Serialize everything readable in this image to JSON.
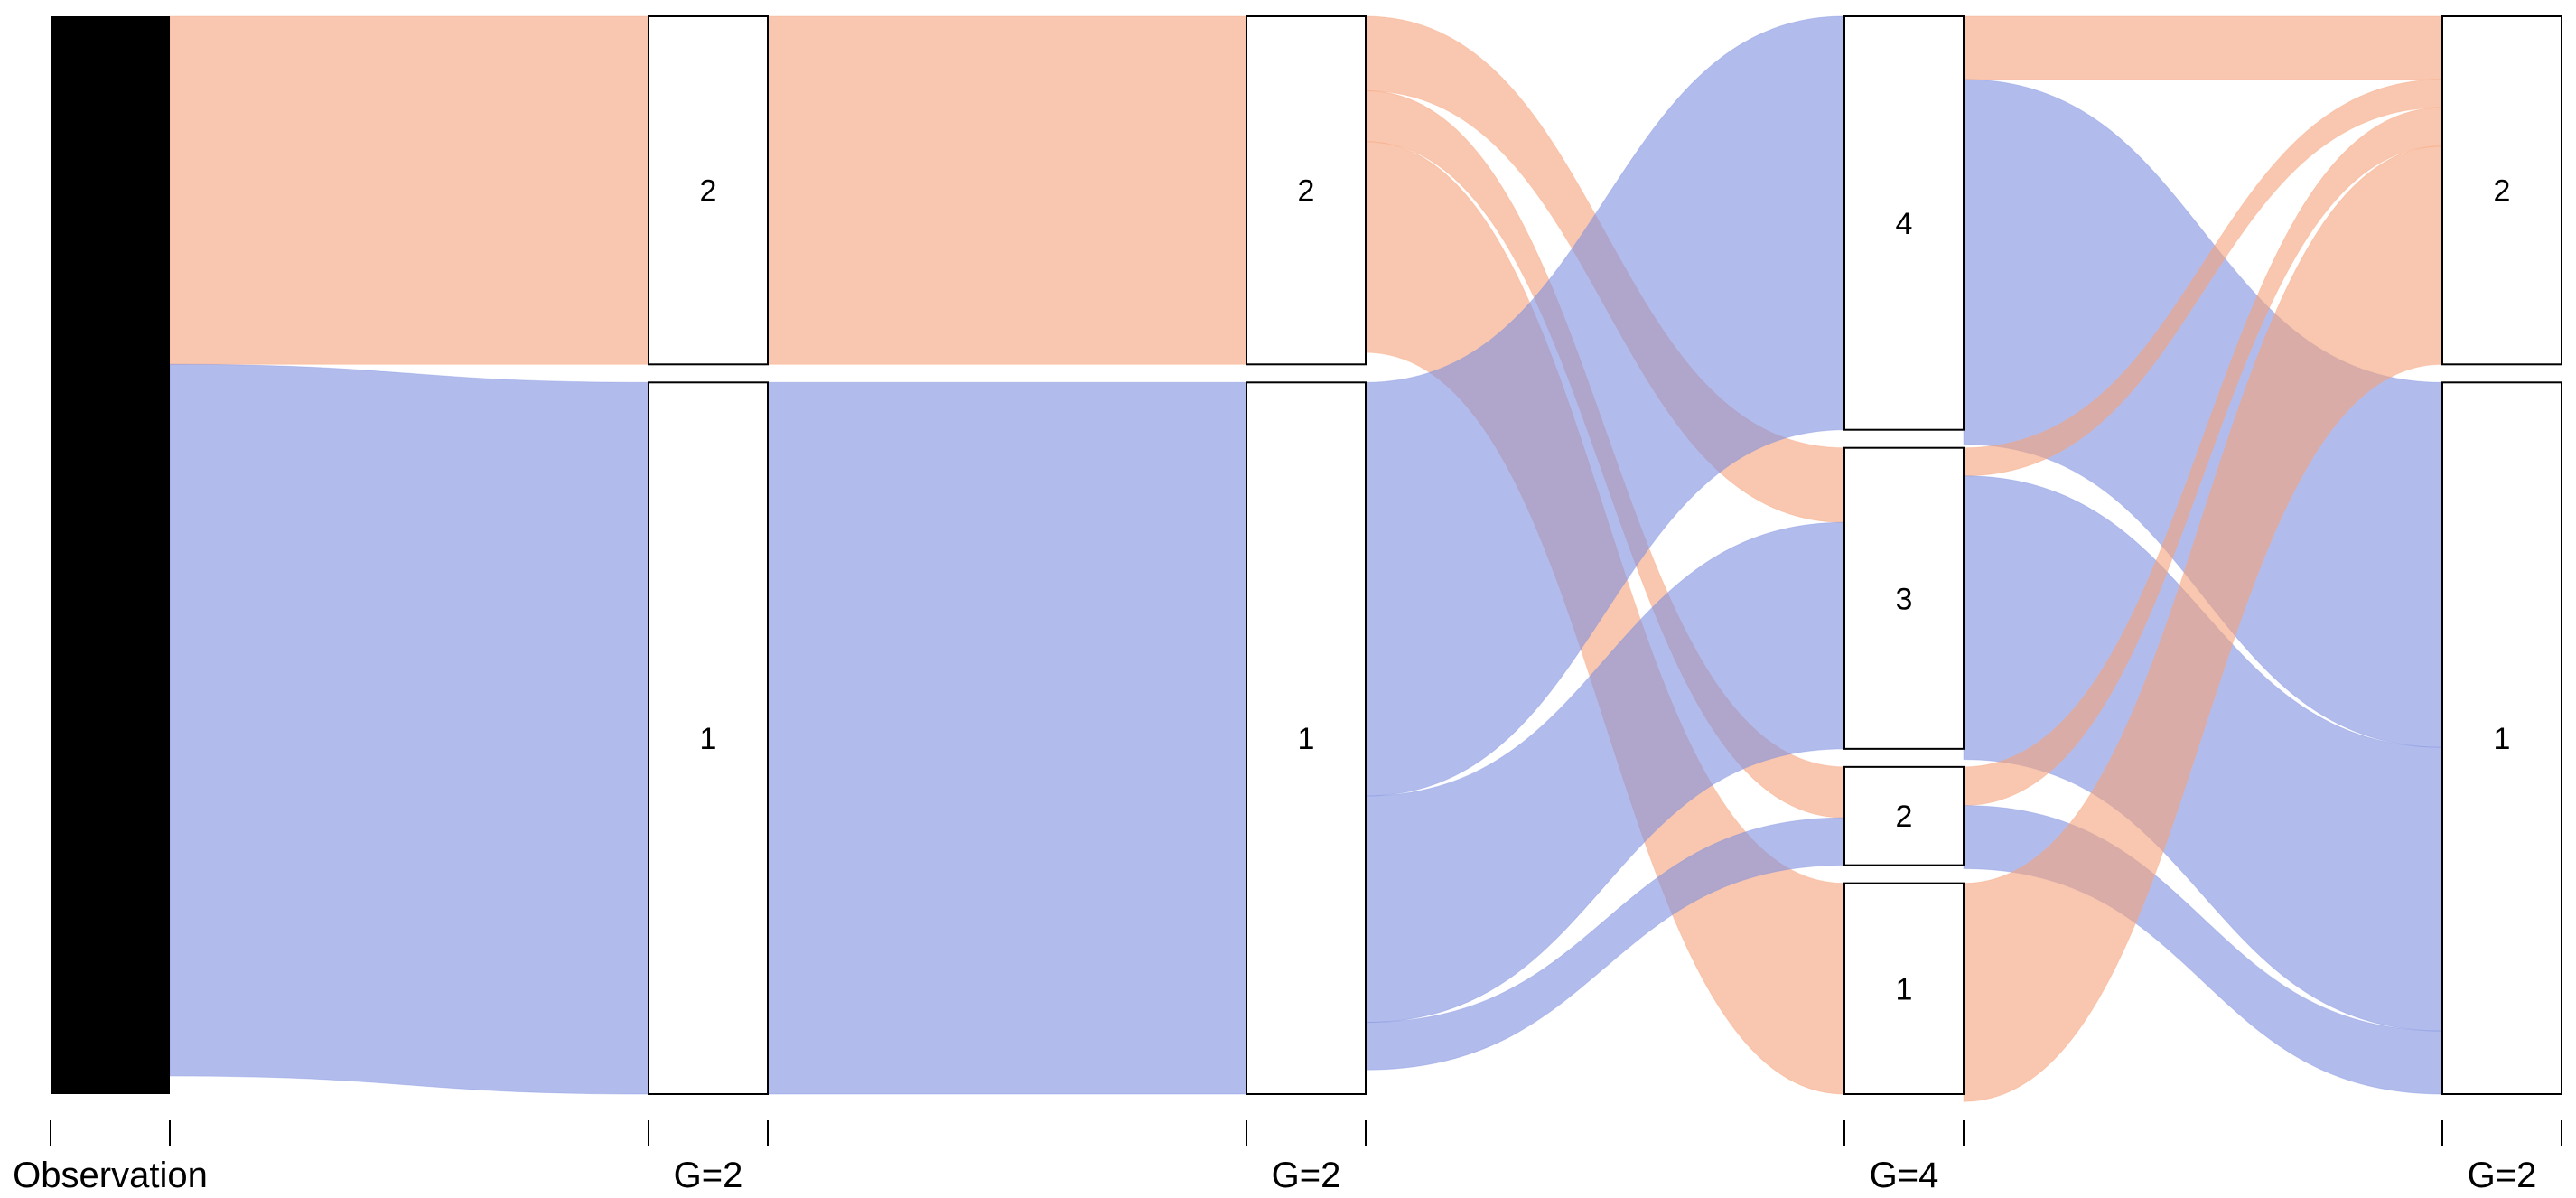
{
  "chart_data": {
    "type": "alluvial",
    "colors": {
      "group1": "#7f8fe0",
      "group2": "#f5a27a",
      "observation": "#000000"
    },
    "axes": [
      {
        "label": "Observation",
        "categories": []
      },
      {
        "label": "G=2",
        "categories": [
          {
            "label": "2",
            "size": 496
          },
          {
            "label": "1",
            "size": 1014
          }
        ]
      },
      {
        "label": "G=2",
        "categories": [
          {
            "label": "2",
            "size": 496
          },
          {
            "label": "1",
            "size": 1014
          }
        ]
      },
      {
        "label": "G=4",
        "categories": [
          {
            "label": "4",
            "size": 610
          },
          {
            "label": "3",
            "size": 444
          },
          {
            "label": "2",
            "size": 145
          },
          {
            "label": "1",
            "size": 311
          }
        ]
      },
      {
        "label": "G=2",
        "categories": [
          {
            "label": "2",
            "size": 496
          },
          {
            "label": "1",
            "size": 1014
          }
        ]
      }
    ],
    "flows": [
      {
        "axis": 1,
        "from": "Observation",
        "to": "2",
        "group": 2,
        "size": 496
      },
      {
        "axis": 1,
        "from": "Observation",
        "to": "1",
        "group": 1,
        "size": 1014
      },
      {
        "axis": 2,
        "from": "2",
        "to": "2",
        "group": 2,
        "size": 496
      },
      {
        "axis": 2,
        "from": "1",
        "to": "1",
        "group": 1,
        "size": 1014
      },
      {
        "axis": 3,
        "from": "2",
        "to": "3",
        "group": 2,
        "size": 110
      },
      {
        "axis": 3,
        "from": "2",
        "to": "2",
        "group": 2,
        "size": 75
      },
      {
        "axis": 3,
        "from": "2",
        "to": "1",
        "group": 2,
        "size": 311
      },
      {
        "axis": 3,
        "from": "1",
        "to": "4",
        "group": 1,
        "size": 610
      },
      {
        "axis": 3,
        "from": "1",
        "to": "3",
        "group": 1,
        "size": 334
      },
      {
        "axis": 3,
        "from": "1",
        "to": "2",
        "group": 1,
        "size": 70
      },
      {
        "axis": 4,
        "from": "4",
        "to": "2",
        "group": 2,
        "size": 90
      },
      {
        "axis": 4,
        "from": "4",
        "to": "1",
        "group": 1,
        "size": 520
      },
      {
        "axis": 4,
        "from": "3",
        "to": "2",
        "group": 2,
        "size": 40
      },
      {
        "axis": 4,
        "from": "3",
        "to": "1",
        "group": 1,
        "size": 404
      },
      {
        "axis": 4,
        "from": "2",
        "to": "2",
        "group": 2,
        "size": 55
      },
      {
        "axis": 4,
        "from": "2",
        "to": "1",
        "group": 1,
        "size": 90
      },
      {
        "axis": 4,
        "from": "1",
        "to": "2",
        "group": 2,
        "size": 311
      }
    ]
  }
}
